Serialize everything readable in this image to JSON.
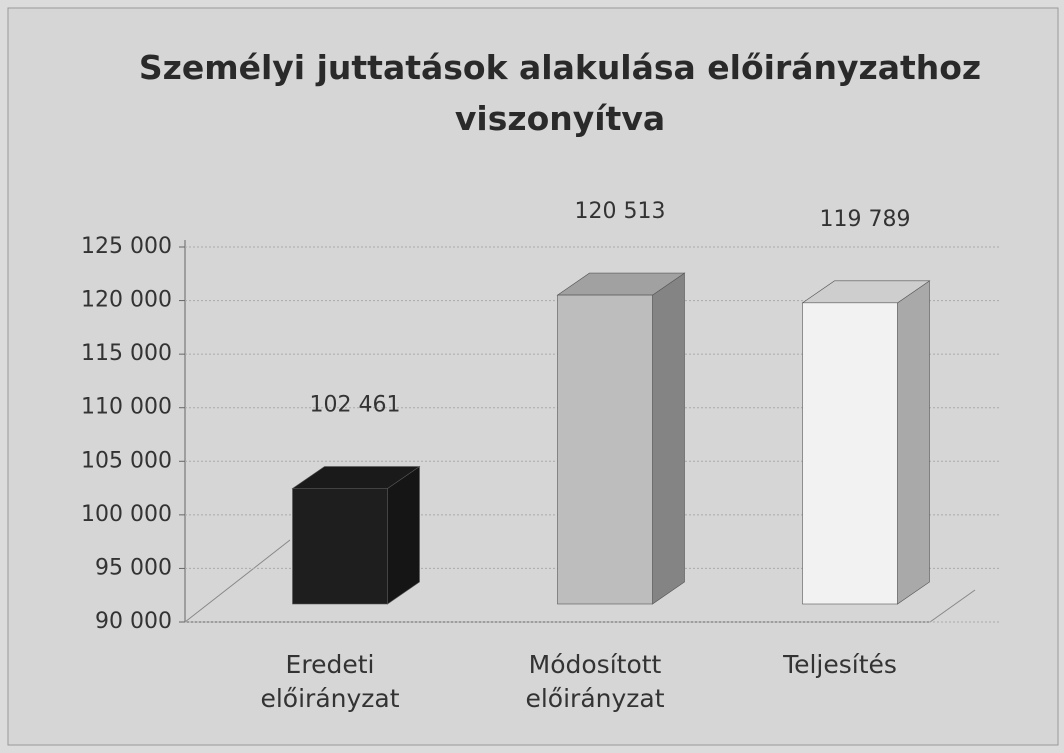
{
  "chart_data": {
    "type": "bar3d",
    "title": "Személyi juttatások alakulása előirányzathoz viszonyítva",
    "categories": [
      "Eredeti előirányzat",
      "Módosított előirányzat",
      "Teljesítés"
    ],
    "values": [
      102461,
      120513,
      119789
    ],
    "value_labels": [
      "102 461",
      "120 513",
      "119 789"
    ],
    "colors": [
      "#1e1e1e",
      "#bdbdbd",
      "#f2f2f2"
    ],
    "ylim": [
      90000,
      125000
    ],
    "yticks": [
      {
        "value": 90000,
        "label": "90 000"
      },
      {
        "value": 95000,
        "label": "95 000"
      },
      {
        "value": 100000,
        "label": "100 000"
      },
      {
        "value": 105000,
        "label": "105 000"
      },
      {
        "value": 110000,
        "label": "110 000"
      },
      {
        "value": 115000,
        "label": "115 000"
      },
      {
        "value": 120000,
        "label": "120 000"
      },
      {
        "value": 125000,
        "label": "125 000"
      }
    ],
    "grid": true
  }
}
